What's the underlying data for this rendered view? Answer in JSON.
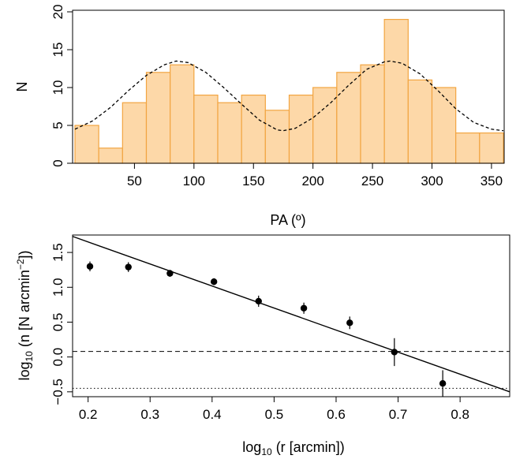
{
  "chart_data": [
    {
      "type": "bar",
      "title": "",
      "xlabel": "PA (º)",
      "ylabel": "N",
      "bin_edges": [
        0,
        20,
        40,
        60,
        80,
        100,
        120,
        140,
        160,
        180,
        200,
        220,
        240,
        260,
        280,
        300,
        320,
        340,
        360
      ],
      "values": [
        5,
        2,
        8,
        12,
        13,
        9,
        8,
        9,
        7,
        9,
        10,
        12,
        13,
        19,
        11,
        10,
        4,
        4
      ],
      "xticks": [
        50,
        100,
        150,
        200,
        250,
        300,
        350
      ],
      "yticks": [
        0,
        5,
        10,
        15,
        20
      ],
      "xlim": [
        0,
        360
      ],
      "ylim": [
        0,
        20
      ],
      "bar_color": "#fdd8a8",
      "bar_edge_color": "#f2a541",
      "overlay_curve": {
        "style": "dashed",
        "color": "#000000",
        "x": [
          0,
          15,
          30,
          45,
          60,
          75,
          85,
          95,
          110,
          125,
          140,
          155,
          170,
          175,
          185,
          200,
          215,
          230,
          245,
          260,
          265,
          275,
          290,
          305,
          320,
          335,
          350,
          360
        ],
        "y": [
          4.5,
          5.6,
          7.4,
          9.6,
          11.6,
          13.0,
          13.5,
          13.3,
          12.0,
          10.0,
          7.8,
          5.7,
          4.4,
          4.3,
          4.6,
          6.0,
          8.0,
          10.3,
          12.4,
          13.4,
          13.5,
          13.2,
          11.8,
          9.6,
          7.2,
          5.4,
          4.5,
          4.3
        ]
      }
    },
    {
      "type": "scatter",
      "title": "",
      "xlabel_main": "log",
      "xlabel_sub": "10",
      "xlabel_rest": " (r [arcmin])",
      "ylabel_main": "log",
      "ylabel_sub": "10",
      "ylabel_mid": " (n [N arcmin",
      "ylabel_sup": "−2",
      "ylabel_end": "])",
      "points": [
        {
          "x": 0.203,
          "y": 1.3,
          "err": 0.07
        },
        {
          "x": 0.265,
          "y": 1.29,
          "err": 0.07
        },
        {
          "x": 0.332,
          "y": 1.2,
          "err": 0.05
        },
        {
          "x": 0.403,
          "y": 1.08,
          "err": 0.05
        },
        {
          "x": 0.475,
          "y": 0.8,
          "err": 0.08
        },
        {
          "x": 0.548,
          "y": 0.7,
          "err": 0.08
        },
        {
          "x": 0.622,
          "y": 0.49,
          "err": 0.09
        },
        {
          "x": 0.694,
          "y": 0.07,
          "err": 0.2
        },
        {
          "x": 0.772,
          "y": -0.38,
          "err": 0.19
        }
      ],
      "fit_line": {
        "style": "solid",
        "x": [
          0.175,
          0.88
        ],
        "y": [
          1.73,
          -0.5
        ]
      },
      "hlines": [
        {
          "style": "dashed",
          "y": 0.08
        },
        {
          "style": "dotted",
          "y": -0.45
        }
      ],
      "xticks": [
        "0.2",
        "0.3",
        "0.4",
        "0.5",
        "0.6",
        "0.7",
        "0.8"
      ],
      "yticks": [
        "−0.5",
        "0.0",
        "0.5",
        "1.0",
        "1.5"
      ],
      "xlim": [
        0.175,
        0.88
      ],
      "ylim": [
        -0.57,
        1.75
      ]
    }
  ]
}
